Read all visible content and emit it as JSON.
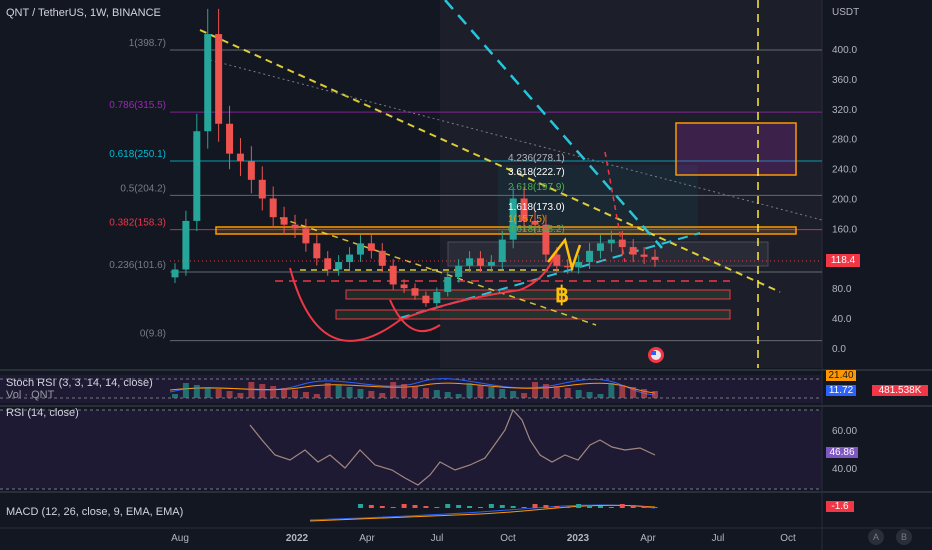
{
  "header": {
    "symbol_line": "QNT / TetherUS, 1W, BINANCE",
    "currency": "USDT"
  },
  "main_axis": {
    "ticks": [
      "400.0",
      "360.0",
      "320.0",
      "280.0",
      "240.0",
      "200.0",
      "160.0",
      "120.0",
      "80.0",
      "40.0",
      "0.0"
    ],
    "current_price": "118.4",
    "current_price_color": "#f23645"
  },
  "fib_levels": [
    {
      "label": "1(398.7)",
      "value": 398.7,
      "color": "#787b86"
    },
    {
      "label": "0.786(315.5)",
      "value": 315.5,
      "color": "#9c27b0"
    },
    {
      "label": "0.618(250.1)",
      "value": 250.1,
      "color": "#00bcd4"
    },
    {
      "label": "0.5(204.2)",
      "value": 204.2,
      "color": "#787b86"
    },
    {
      "label": "0.382(158.3)",
      "value": 158.3,
      "color": "#f23645"
    },
    {
      "label": "0.236(101.6)",
      "value": 101.6,
      "color": "#787b86"
    },
    {
      "label": "0(9.8)",
      "value": 9.8,
      "color": "#787b86"
    }
  ],
  "annotations": [
    {
      "text": "4.236(278.1)",
      "color": "#b2b5be"
    },
    {
      "text": "3.618(222.7)",
      "color": "#ffffff"
    },
    {
      "text": "2.618(197.9)",
      "color": "#4caf50"
    },
    {
      "text": "1.618(173.0)",
      "color": "#ffffff"
    },
    {
      "text": "1(157.5)",
      "color": "#ff9800"
    },
    {
      "text": "0.618(148.2)",
      "color": "#4caf50"
    }
  ],
  "x_axis": {
    "ticks": [
      "Aug",
      "2022",
      "Apr",
      "Jul",
      "Oct",
      "2023",
      "Apr",
      "Jul",
      "Oct"
    ]
  },
  "panes": {
    "stoch_rsi": {
      "label": "Stoch RSI (3, 3, 14, 14, close)",
      "values": [
        "21.40",
        "11.72"
      ],
      "colors": [
        "#ff9800",
        "#2962ff"
      ]
    },
    "volume": {
      "label": "Vol · QNT",
      "value": "481.538K",
      "color": "#f23645"
    },
    "rsi": {
      "label": "RSI (14, close)",
      "ticks": [
        "60.00",
        "40.00"
      ],
      "value": "46.86",
      "color": "#7e57c2"
    },
    "macd": {
      "label": "MACD (12, 26, close, 9, EMA, EMA)",
      "value": "-1.6",
      "color": "#f23645"
    }
  },
  "chart_data": {
    "type": "line",
    "title": "QNT / TetherUS, 1W, BINANCE",
    "xlabel": "",
    "ylabel": "",
    "ylim": [
      0,
      420
    ],
    "grid": false,
    "x": [
      "2021-07-26",
      "2021-08-09",
      "2021-08-23",
      "2021-09-06",
      "2021-09-20",
      "2021-10-04",
      "2021-10-18",
      "2021-11-01",
      "2021-11-15",
      "2021-11-29",
      "2021-12-13",
      "2021-12-27",
      "2022-01-10",
      "2022-01-24",
      "2022-02-07",
      "2022-02-21",
      "2022-03-07",
      "2022-03-21",
      "2022-04-04",
      "2022-04-18",
      "2022-05-02",
      "2022-05-16",
      "2022-05-30",
      "2022-06-13",
      "2022-06-27",
      "2022-07-11",
      "2022-07-25",
      "2022-08-08",
      "2022-08-22",
      "2022-09-05",
      "2022-09-19",
      "2022-10-03",
      "2022-10-17",
      "2022-10-31",
      "2022-11-14",
      "2022-11-28",
      "2022-12-12",
      "2022-12-26",
      "2023-01-09",
      "2023-01-23",
      "2023-02-06",
      "2023-02-20",
      "2023-03-06",
      "2023-03-20",
      "2023-04-03"
    ],
    "series": [
      {
        "values": [
          105,
          170,
          290,
          420,
          300,
          260,
          250,
          225,
          200,
          175,
          165,
          160,
          140,
          120,
          105,
          115,
          125,
          140,
          130,
          110,
          85,
          80,
          70,
          60,
          75,
          95,
          110,
          120,
          110,
          115,
          145,
          200,
          170,
          165,
          125,
          110,
          108,
          115,
          130,
          140,
          145,
          135,
          125,
          122,
          118
        ]
      }
    ]
  }
}
